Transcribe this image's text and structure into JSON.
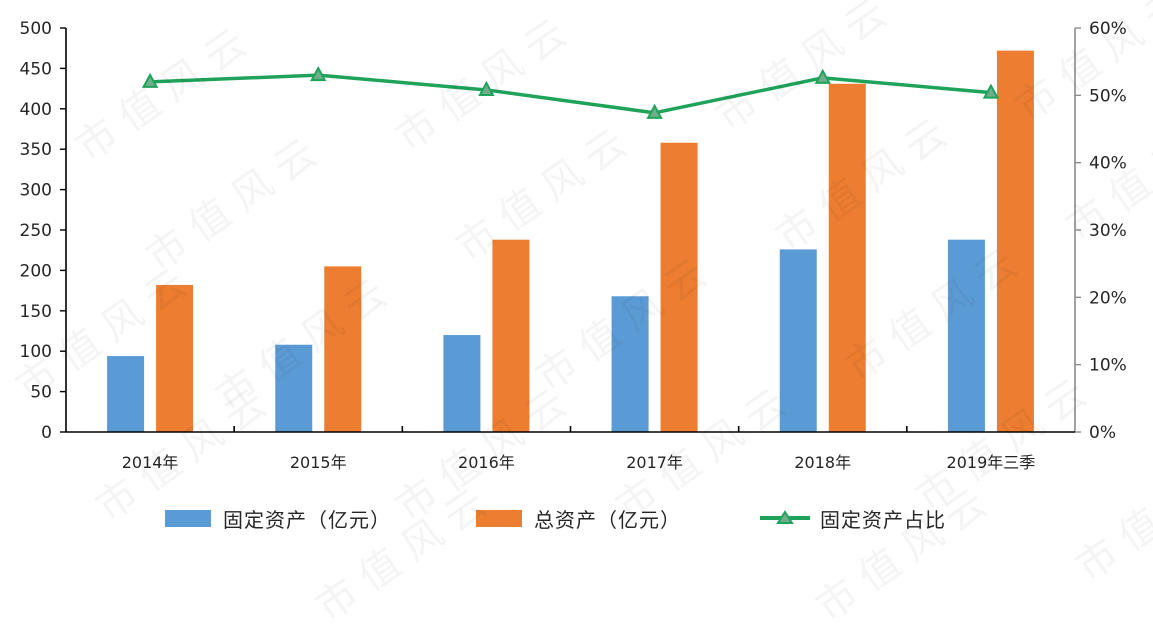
{
  "chart_data": {
    "type": "bar+line",
    "title": "",
    "categories": [
      "2014年",
      "2015年",
      "2016年",
      "2017年",
      "2018年",
      "2019年三季"
    ],
    "series": [
      {
        "name": "固定资产（亿元）",
        "type": "bar",
        "axis": "left",
        "color": "#5b9bd5",
        "values": [
          94,
          108,
          120,
          168,
          226,
          238
        ]
      },
      {
        "name": "总资产（亿元）",
        "type": "bar",
        "axis": "left",
        "color": "#ed7d31",
        "values": [
          182,
          205,
          238,
          358,
          431,
          472
        ]
      },
      {
        "name": "固定资产占比",
        "type": "line",
        "axis": "right",
        "color": "#1fa35a",
        "marker": "triangle",
        "values": [
          0.52,
          0.53,
          0.508,
          0.474,
          0.526,
          0.504
        ]
      }
    ],
    "left_axis": {
      "min": 0,
      "max": 500,
      "step": 50,
      "ticks": [
        "0",
        "50",
        "100",
        "150",
        "200",
        "250",
        "300",
        "350",
        "400",
        "450",
        "500"
      ]
    },
    "right_axis": {
      "min": 0,
      "max": 0.6,
      "step": 0.1,
      "ticks": [
        "0%",
        "10%",
        "20%",
        "30%",
        "40%",
        "50%",
        "60%"
      ]
    },
    "xlabel": "",
    "ylabel": "",
    "ylabel_right": "",
    "grid": false,
    "legend_position": "bottom"
  },
  "legend": {
    "items": [
      {
        "label": "固定资产（亿元）",
        "color": "#5b9bd5",
        "kind": "bar"
      },
      {
        "label": "总资产（亿元）",
        "color": "#ed7d31",
        "kind": "bar"
      },
      {
        "label": "固定资产占比",
        "color": "#1fa35a",
        "kind": "line-triangle"
      }
    ]
  },
  "watermark": {
    "text": "市值风云"
  }
}
